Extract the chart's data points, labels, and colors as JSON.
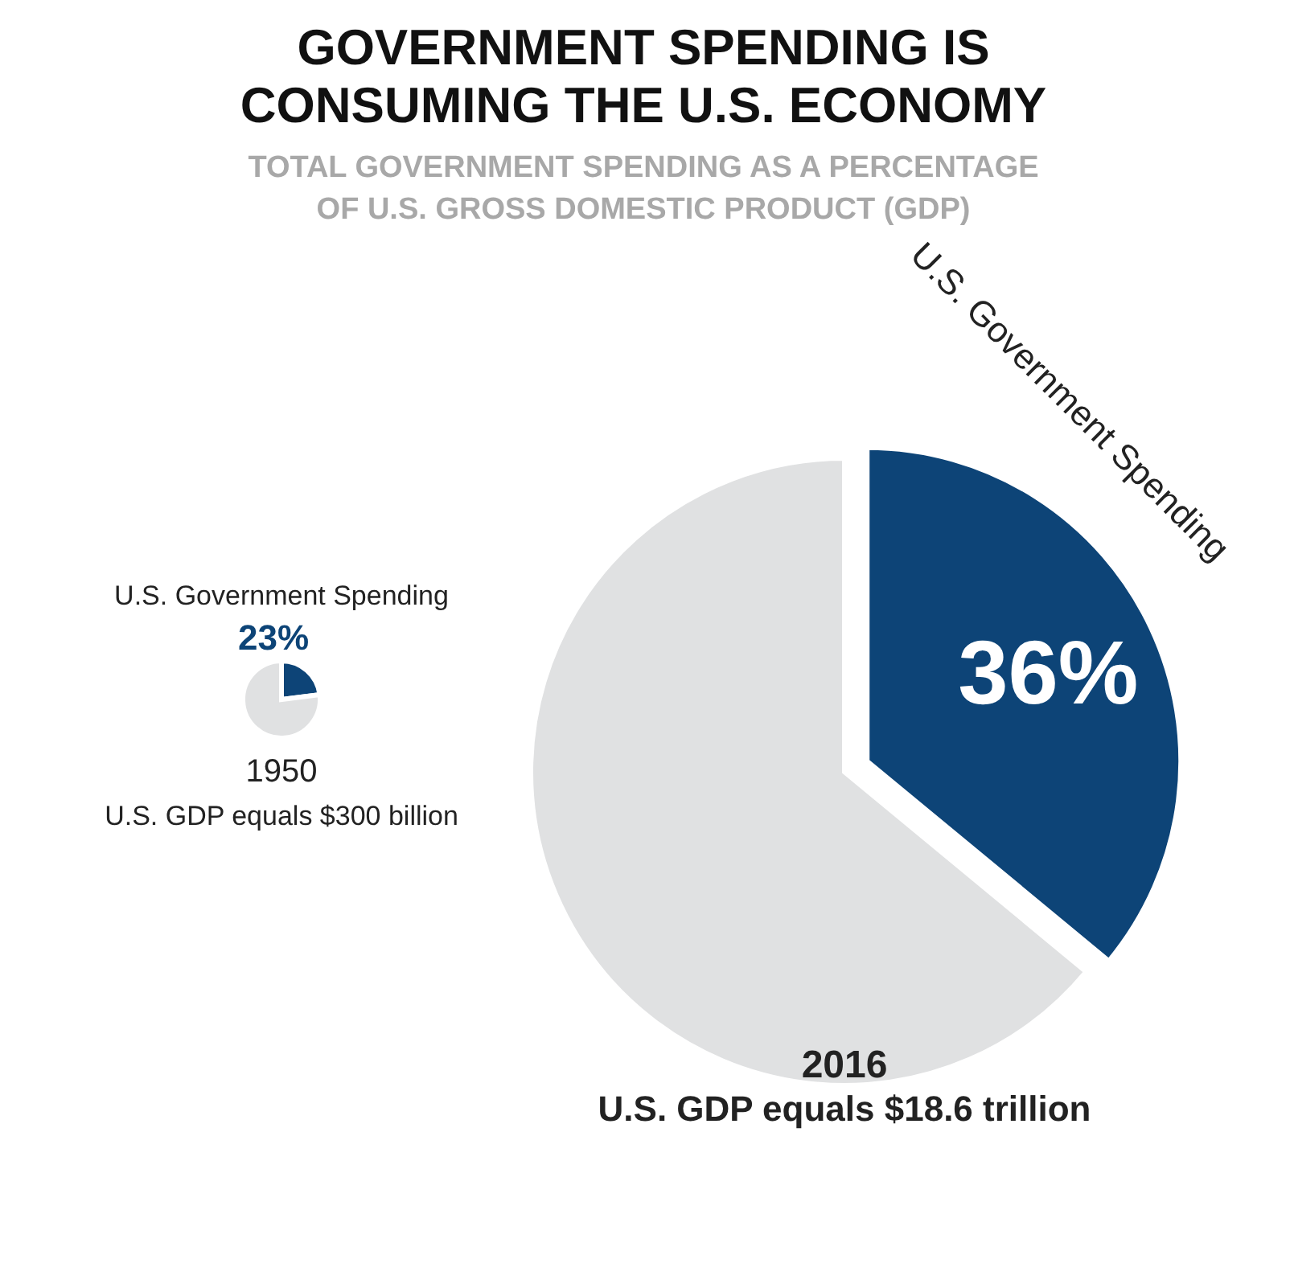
{
  "chart_data": [
    {
      "type": "pie",
      "title": "GOVERNMENT SPENDING IS CONSUMING THE U.S. ECONOMY",
      "subtitle": "TOTAL GOVERNMENT SPENDING AS A PERCENTAGE OF U.S. GROSS DOMESTIC PRODUCT (GDP)",
      "categories": [
        "U.S. Government Spending",
        null
      ],
      "values": [
        23,
        77
      ],
      "colors": [
        "#0d4477",
        "#e0e1e2"
      ],
      "value_labels": [
        "23%",
        null
      ],
      "annotations": [
        "1950",
        "U.S. GDP equals $300 billion"
      ]
    },
    {
      "type": "pie",
      "categories": [
        "U.S. Government Spending",
        null
      ],
      "values": [
        36,
        64
      ],
      "colors": [
        "#0d4477",
        "#e0e1e2"
      ],
      "value_labels": [
        "36%",
        null
      ],
      "annotations": [
        "2016",
        "U.S. GDP equals $18.6 trillion"
      ]
    }
  ]
}
